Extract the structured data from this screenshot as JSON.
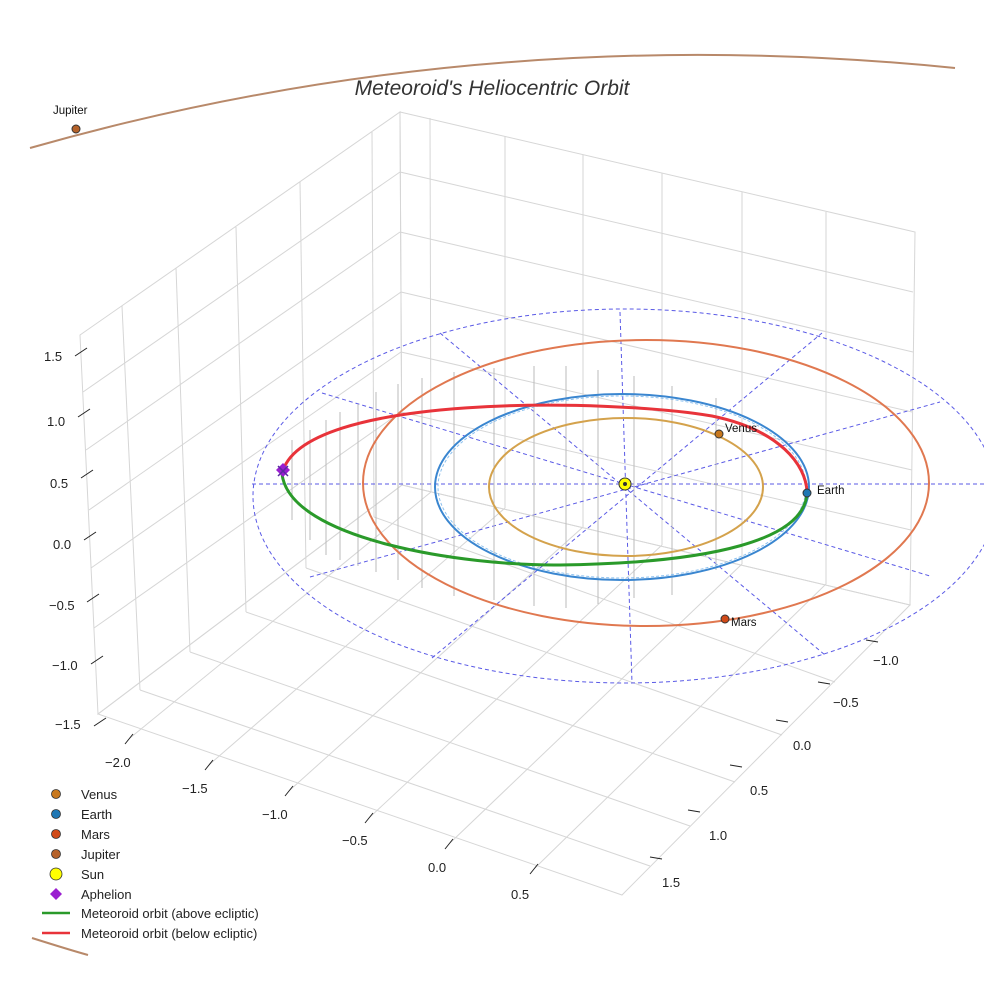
{
  "chart_data": {
    "type": "line3d",
    "title": "Meteoroid's Heliocentric Orbit",
    "axes": {
      "x": {
        "ticks": [
          "−2.0",
          "−1.5",
          "−1.0",
          "−0.5",
          "0.0",
          "0.5"
        ]
      },
      "y": {
        "ticks": [
          "−1.0",
          "−0.5",
          "0.0",
          "0.5",
          "1.0",
          "1.5"
        ]
      },
      "z": {
        "ticks": [
          "1.5",
          "1.0",
          "0.5",
          "0.0",
          "−0.5",
          "−1.0",
          "−1.5"
        ]
      }
    },
    "planets": [
      {
        "name": "Venus",
        "orbit_radius_au": 0.72,
        "color": "#d4a24c",
        "marker": "#c8781e",
        "label": "Venus"
      },
      {
        "name": "Earth",
        "orbit_radius_au": 1.0,
        "color": "#3a86d0",
        "marker": "#1f77b4",
        "label": "Earth"
      },
      {
        "name": "Mars",
        "orbit_radius_au": 1.52,
        "color": "#e07850",
        "marker": "#d04a18",
        "label": "Mars"
      },
      {
        "name": "Jupiter",
        "orbit_radius_au": 5.2,
        "color": "#b8896a",
        "marker": "#b5622a",
        "label": "Jupiter"
      }
    ],
    "sun": {
      "label": "Sun",
      "color": "#ffff00"
    },
    "aphelion": {
      "label": "Aphelion",
      "color": "#9a1fd0"
    },
    "meteoroid": {
      "above": {
        "label": "Meteoroid orbit (above ecliptic)",
        "color": "#2a9a2a"
      },
      "below": {
        "label": "Meteoroid orbit (below ecliptic)",
        "color": "#e8333a"
      }
    },
    "legend": [
      {
        "label": "Venus",
        "kind": "dot",
        "color": "#c8781e"
      },
      {
        "label": "Earth",
        "kind": "dot",
        "color": "#1f77b4"
      },
      {
        "label": "Mars",
        "kind": "dot",
        "color": "#d04a18"
      },
      {
        "label": "Jupiter",
        "kind": "dot",
        "color": "#b5622a"
      },
      {
        "label": "Sun",
        "kind": "sun",
        "color": "#ffff00"
      },
      {
        "label": "Aphelion",
        "kind": "diamond",
        "color": "#9a1fd0"
      },
      {
        "label": "Meteoroid orbit (above ecliptic)",
        "kind": "line",
        "color": "#2a9a2a"
      },
      {
        "label": "Meteoroid orbit (below ecliptic)",
        "kind": "line",
        "color": "#e8333a"
      }
    ],
    "legend_placement": "bottom-left"
  }
}
